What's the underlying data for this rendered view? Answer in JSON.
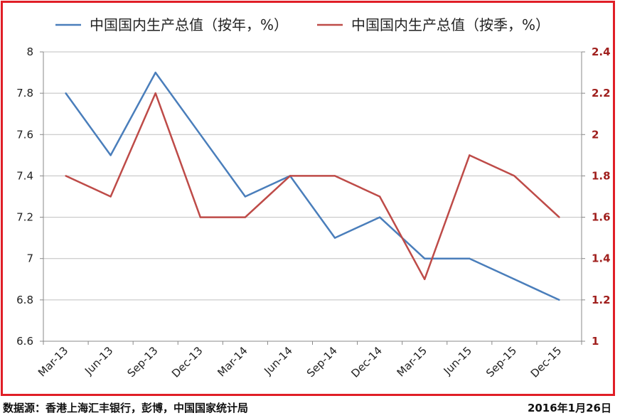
{
  "chart_data": {
    "type": "line",
    "categories": [
      "Mar-13",
      "Jun-13",
      "Sep-13",
      "Dec-13",
      "Mar-14",
      "Jun-14",
      "Sep-14",
      "Dec-14",
      "Mar-15",
      "Jun-15",
      "Sep-15",
      "Dec-15"
    ],
    "series": [
      {
        "name": "中国国内生产总值（按年，%）",
        "axis": "left",
        "color": "#4a7ebb",
        "values": [
          7.8,
          7.5,
          7.9,
          7.6,
          7.3,
          7.4,
          7.1,
          7.2,
          7.0,
          7.0,
          6.9,
          6.8
        ]
      },
      {
        "name": "中国国内生产总值（按季，%）",
        "axis": "right",
        "color": "#be4b48",
        "values": [
          1.8,
          1.7,
          2.2,
          1.6,
          1.6,
          1.8,
          1.8,
          1.7,
          1.3,
          1.9,
          1.8,
          1.6
        ]
      }
    ],
    "y_left": {
      "range": [
        6.6,
        8.0
      ],
      "ticks": [
        "6.6",
        "6.8",
        "7",
        "7.2",
        "7.4",
        "7.6",
        "7.8",
        "8"
      ]
    },
    "y_right": {
      "range": [
        1.0,
        2.4
      ],
      "ticks": [
        "1",
        "1.2",
        "1.4",
        "1.6",
        "1.8",
        "2",
        "2.2",
        "2.4"
      ],
      "color": "#a0201e"
    },
    "grid": true,
    "legend_position": "top"
  },
  "footer": {
    "source": "数据源：香港上海汇丰银行，彭博，中国国家统计局",
    "date": "2016年1月26日"
  },
  "colors": {
    "border": "#e01e26",
    "grid": "#bfbfbf"
  }
}
